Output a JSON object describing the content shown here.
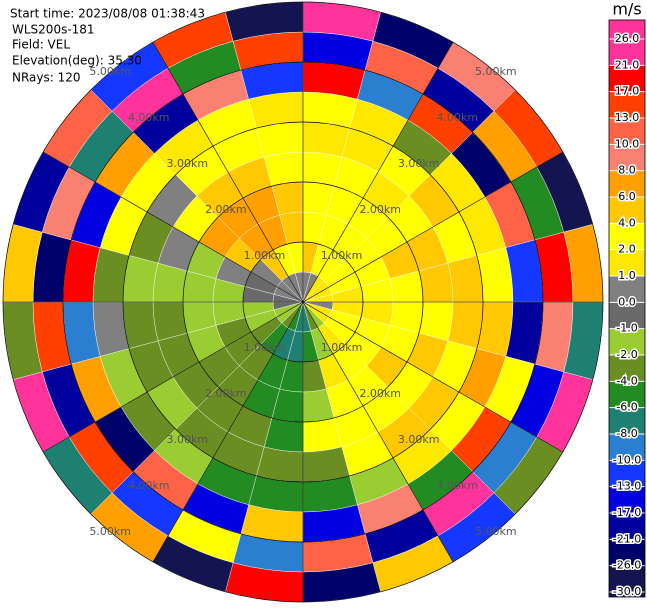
{
  "header": {
    "start_time": "Start time: 2023/08/08 01:38:43",
    "instrument": "WLS200s-181",
    "field": "Field: VEL",
    "elevation": "Elevation(deg): 35.30",
    "nrays": "NRays: 120"
  },
  "chart_data": {
    "type": "ppi",
    "rlim": [
      0,
      5
    ],
    "rings": [
      {
        "value": 1,
        "label": "1.00km"
      },
      {
        "value": 2,
        "label": "2.00km"
      },
      {
        "value": 3,
        "label": "3.00km"
      },
      {
        "value": 4,
        "label": "4.00km"
      },
      {
        "value": 5,
        "label": "5.00km"
      }
    ],
    "azimuths": [
      0,
      15,
      30,
      45,
      60,
      75,
      90,
      105,
      120,
      135,
      150,
      165,
      180,
      195,
      210,
      225,
      240,
      255,
      270,
      285,
      300,
      315,
      330,
      345
    ],
    "ranges": [
      0,
      0.5,
      1,
      1.5,
      2,
      2.5,
      3,
      3.5,
      4,
      4.5,
      5
    ],
    "values": [
      [
        0.5,
        5,
        3,
        3,
        2.5,
        1.5,
        3,
        18,
        -14,
        24
      ],
      [
        0.5,
        3,
        3,
        2.5,
        3,
        2,
        1.5,
        -9,
        11,
        -22
      ],
      [
        1.5,
        3,
        2.5,
        3,
        2,
        3,
        -3,
        15,
        -18,
        9
      ],
      [
        1.5,
        2.5,
        3,
        3,
        3,
        5,
        2,
        -24,
        7,
        14
      ],
      [
        1.5,
        3,
        3,
        5,
        5,
        3,
        1.5,
        12,
        -5,
        -27
      ],
      [
        1.5,
        1.5,
        3,
        3,
        5,
        5,
        3,
        -12,
        20,
        6.5
      ],
      [
        0.5,
        1.5,
        1.5,
        3,
        3,
        5,
        5,
        -19,
        9,
        -7
      ],
      [
        1.5,
        3,
        3,
        3,
        5,
        3,
        7,
        3,
        -15,
        22
      ],
      [
        1.5,
        3,
        3,
        5,
        3,
        5,
        3,
        16,
        -9,
        -2.5
      ],
      [
        -1.5,
        1.5,
        3,
        3,
        3,
        5,
        1.5,
        -5,
        27,
        -11
      ],
      [
        -3,
        -1.5,
        1.5,
        3,
        3,
        3,
        -1.5,
        9,
        -20,
        4.5
      ],
      [
        -7,
        -5,
        -3,
        -1.5,
        3,
        -3,
        -5,
        -14,
        11,
        -23
      ],
      [
        -7,
        -7,
        -5,
        -5,
        -5,
        -3,
        -5,
        5,
        -9,
        18
      ],
      [
        -5,
        -7,
        -5,
        -5,
        -3,
        -3,
        -5,
        -16,
        3,
        -28
      ],
      [
        -3,
        -5,
        -3,
        -3,
        -3,
        -3,
        -1.5,
        12,
        -12,
        7
      ],
      [
        -1.5,
        -3,
        -3,
        -3,
        -3,
        -1.5,
        -3,
        -22,
        15,
        -6
      ],
      [
        -1.5,
        -1.5,
        -3,
        -1.5,
        -3,
        -3,
        -1.5,
        8,
        -18,
        25
      ],
      [
        -0.5,
        -1.5,
        -1.5,
        -1.5,
        -3,
        -3,
        0.5,
        -9,
        14,
        -3
      ],
      [
        -0.5,
        -0.5,
        -1.5,
        -1.5,
        -1.5,
        -1.5,
        -3,
        19,
        -25,
        5
      ],
      [
        0.5,
        -0.5,
        0.5,
        -1.5,
        0.5,
        -3,
        3,
        -13,
        9,
        -19
      ],
      [
        0.5,
        0.5,
        5,
        7,
        3,
        0.5,
        3,
        6.5,
        -7,
        12
      ],
      [
        0.5,
        5,
        7,
        7,
        5,
        3,
        1.5,
        -17,
        23,
        -10
      ],
      [
        0.5,
        3,
        7,
        7,
        5,
        3,
        3,
        10,
        -4.5,
        16
      ],
      [
        0.5,
        3,
        5,
        5,
        3,
        3,
        1.5,
        -11,
        17,
        -26
      ]
    ],
    "colorbar": {
      "title": "m/s",
      "ticks": [
        {
          "value": 26,
          "label": "26.0"
        },
        {
          "value": 21,
          "label": "21.0"
        },
        {
          "value": 17,
          "label": "17.0"
        },
        {
          "value": 13,
          "label": "13.0"
        },
        {
          "value": 10,
          "label": "10.0"
        },
        {
          "value": 8,
          "label": "8.0"
        },
        {
          "value": 6,
          "label": "6.0"
        },
        {
          "value": 4,
          "label": "4.0"
        },
        {
          "value": 2,
          "label": "2.0"
        },
        {
          "value": 1,
          "label": "1.0"
        },
        {
          "value": 0,
          "label": "0.0"
        },
        {
          "value": -1,
          "label": "-1.0"
        },
        {
          "value": -2,
          "label": "-2.0"
        },
        {
          "value": -4,
          "label": "-4.0"
        },
        {
          "value": -6,
          "label": "-6.0"
        },
        {
          "value": -8,
          "label": "-8.0"
        },
        {
          "value": -10,
          "label": "-10.0"
        },
        {
          "value": -13,
          "label": "-13.0"
        },
        {
          "value": -17,
          "label": "-17.0"
        },
        {
          "value": -21,
          "label": "-21.0"
        },
        {
          "value": -26,
          "label": "-26.0"
        },
        {
          "value": -30,
          "label": "-30.0"
        }
      ],
      "colors": [
        "#ff3399",
        "#ff0000",
        "#ff4000",
        "#ff6347",
        "#fa8072",
        "#ffa000",
        "#ffc800",
        "#ffff00",
        "#ffe800",
        "#808080",
        "#6a6a6a",
        "#9acd32",
        "#6b8e23",
        "#228b22",
        "#1e8070",
        "#2a7fd0",
        "#1438ff",
        "#0000e0",
        "#00009c",
        "#00006a",
        "#141450"
      ]
    }
  }
}
